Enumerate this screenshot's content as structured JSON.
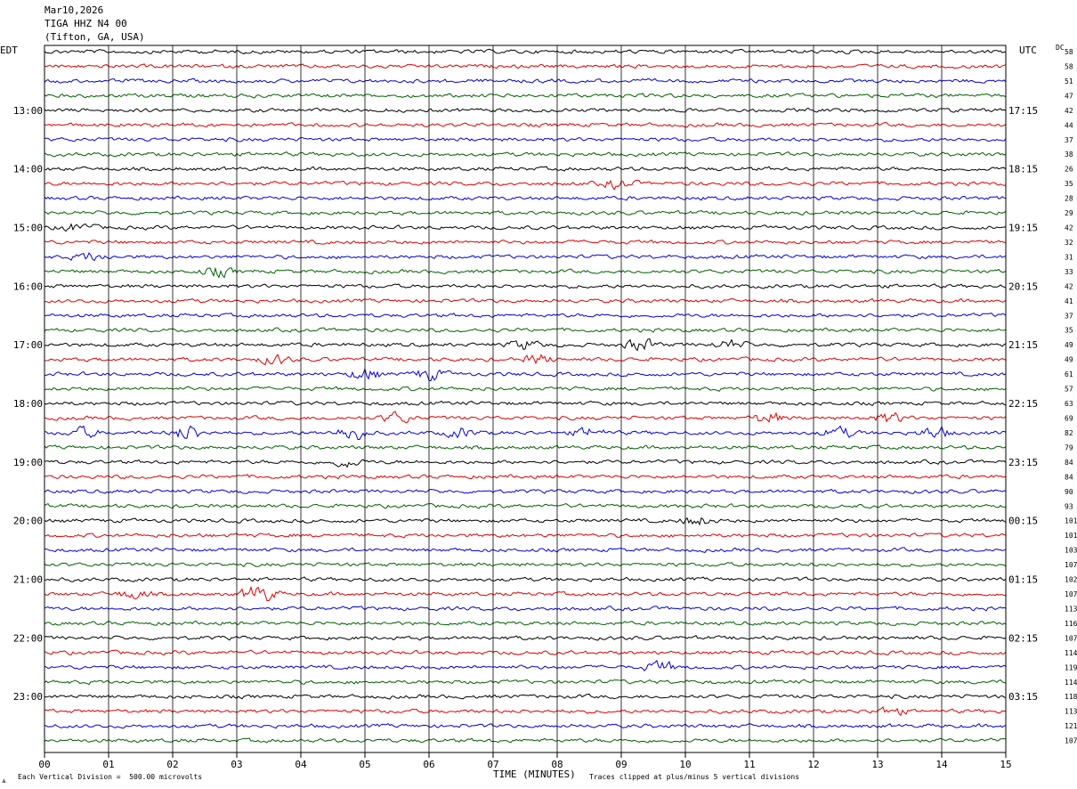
{
  "header": {
    "date": "Mar10,2026",
    "station": "TIGA HHZ N4 00",
    "location": "(Tifton, GA, USA)"
  },
  "left_timezone": "EDT",
  "right_timezone": "UTC",
  "dc_label": "DC",
  "footer": {
    "xlabel": "TIME (MINUTES)",
    "scale_note": "Each Vertical Division =  500.00 microvolts",
    "clip_note": "Traces clipped at plus/minus 5 vertical divisions",
    "corner_mark": "ѧ"
  },
  "colors": {
    "trace_cycle": [
      "#000000",
      "#e00000",
      "#0000e0",
      "#006000"
    ],
    "grid": "#000000",
    "background": "#ffffff"
  },
  "chart_data": {
    "type": "line",
    "title": "TIGA HHZ N4 00",
    "xlabel": "TIME (MINUTES)",
    "ylabel": "",
    "xlim": [
      0,
      15
    ],
    "x_ticks": [
      "00",
      "01",
      "02",
      "03",
      "04",
      "05",
      "06",
      "07",
      "08",
      "09",
      "10",
      "11",
      "12",
      "13",
      "14",
      "15"
    ],
    "left_hour_labels": [
      "13:00",
      "14:00",
      "15:00",
      "16:00",
      "17:00",
      "18:00",
      "19:00",
      "20:00",
      "21:00",
      "22:00",
      "23:00"
    ],
    "right_hour_labels": [
      "17:15",
      "18:15",
      "19:15",
      "20:15",
      "21:15",
      "22:15",
      "23:15",
      "00:15",
      "01:15",
      "02:15",
      "03:15"
    ],
    "dc_offsets": [
      "58",
      "58",
      "51",
      "47",
      "42",
      "44",
      "37",
      "38",
      "26",
      "35",
      "28",
      "29",
      "42",
      "32",
      "31",
      "33",
      "42",
      "41",
      "37",
      "35",
      "49",
      "49",
      "61",
      "57",
      "63",
      "69",
      "82",
      "79",
      "84",
      "84",
      "90",
      "93",
      "101",
      "101",
      "103",
      "107",
      "102",
      "107",
      "113",
      "116",
      "107",
      "114",
      "119",
      "114",
      "118",
      "113",
      "121",
      "107"
    ],
    "trace_count": 48,
    "traces_per_hour": 4,
    "minutes_per_trace": 15,
    "events": [
      {
        "trace": 9,
        "minute": 8.95,
        "amplitude": 1.6
      },
      {
        "trace": 12,
        "minute": 0.5,
        "amplitude": 1.3
      },
      {
        "trace": 14,
        "minute": 0.7,
        "amplitude": 1.4
      },
      {
        "trace": 15,
        "minute": 2.7,
        "amplitude": 1.6
      },
      {
        "trace": 20,
        "minute": 7.5,
        "amplitude": 1.7
      },
      {
        "trace": 20,
        "minute": 9.3,
        "amplitude": 2.1
      },
      {
        "trace": 20,
        "minute": 10.7,
        "amplitude": 1.4
      },
      {
        "trace": 21,
        "minute": 3.6,
        "amplitude": 1.6
      },
      {
        "trace": 21,
        "minute": 7.7,
        "amplitude": 1.6
      },
      {
        "trace": 22,
        "minute": 5.0,
        "amplitude": 2.0
      },
      {
        "trace": 22,
        "minute": 6.0,
        "amplitude": 2.0
      },
      {
        "trace": 25,
        "minute": 5.5,
        "amplitude": 1.8
      },
      {
        "trace": 25,
        "minute": 11.3,
        "amplitude": 2.0
      },
      {
        "trace": 25,
        "minute": 13.2,
        "amplitude": 1.8
      },
      {
        "trace": 26,
        "minute": 0.6,
        "amplitude": 1.6
      },
      {
        "trace": 26,
        "minute": 2.25,
        "amplitude": 2.6
      },
      {
        "trace": 26,
        "minute": 4.8,
        "amplitude": 2.8
      },
      {
        "trace": 26,
        "minute": 6.5,
        "amplitude": 1.6
      },
      {
        "trace": 26,
        "minute": 8.5,
        "amplitude": 1.5
      },
      {
        "trace": 26,
        "minute": 12.4,
        "amplitude": 1.8
      },
      {
        "trace": 26,
        "minute": 13.9,
        "amplitude": 2.0
      },
      {
        "trace": 28,
        "minute": 4.7,
        "amplitude": 1.5
      },
      {
        "trace": 32,
        "minute": 10.2,
        "amplitude": 1.6
      },
      {
        "trace": 37,
        "minute": 1.4,
        "amplitude": 1.5
      },
      {
        "trace": 37,
        "minute": 3.35,
        "amplitude": 4.0
      },
      {
        "trace": 42,
        "minute": 9.6,
        "amplitude": 2.0
      },
      {
        "trace": 45,
        "minute": 13.2,
        "amplitude": 1.4
      }
    ]
  }
}
